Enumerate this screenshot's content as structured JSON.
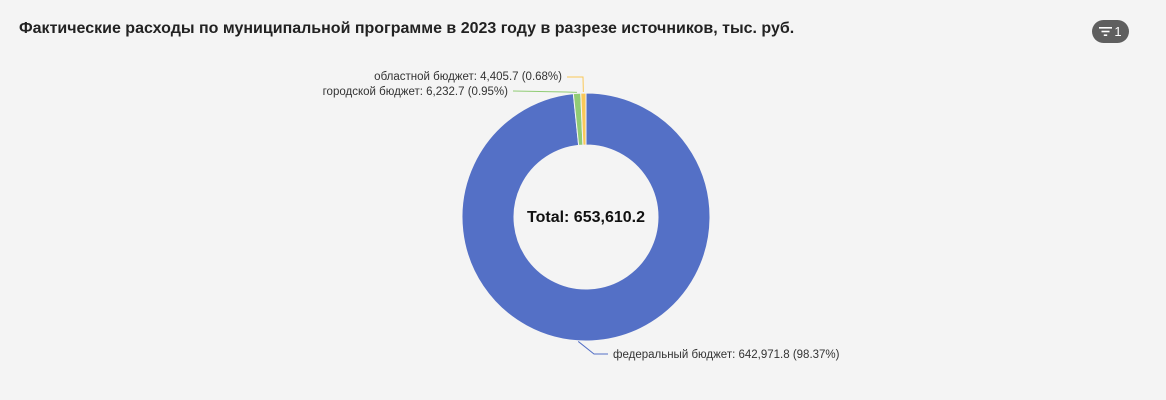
{
  "header": {
    "title": "Фактические расходы по муниципальной программе в 2023 году в разрезе источников, тыс. руб.",
    "filter_count": "1"
  },
  "chart_data": {
    "type": "pie",
    "donut": true,
    "title": "Фактические расходы по муниципальной программе в 2023 году в разрезе источников, тыс. руб.",
    "center_label": "Total: 653,610.2",
    "total": 653610.2,
    "slices": [
      {
        "name": "федеральный бюджет",
        "value": 642971.8,
        "percent": 98.37,
        "color": "#5470c6",
        "label": "федеральный бюджет: 642,971.8 (98.37%)"
      },
      {
        "name": "городской бюджет",
        "value": 6232.7,
        "percent": 0.95,
        "color": "#91cc75",
        "label": "городской бюджет: 6,232.7 (0.95%)"
      },
      {
        "name": "областной бюджет",
        "value": 4405.7,
        "percent": 0.68,
        "color": "#fac858",
        "label": "областной бюджет: 4,405.7 (0.68%)"
      }
    ]
  }
}
